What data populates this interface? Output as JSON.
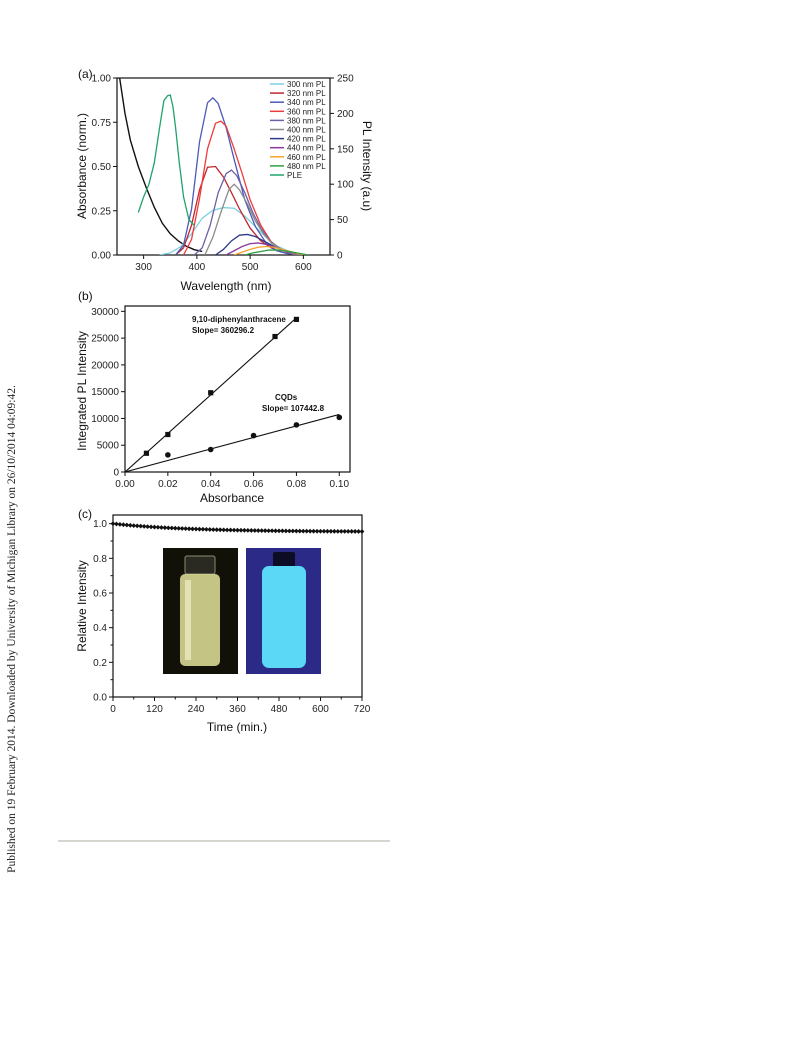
{
  "side_note": "Published on 19 February 2014. Downloaded by University of Michigan Library on 26/10/2014 04:09:42.",
  "chart_data": [
    {
      "panel_label": "(a)",
      "type": "line",
      "xlabel": "Wavelength (nm)",
      "ylabel": "Absorbance (norm.)",
      "y2label": "PL Intensity (a.u)",
      "xlim": [
        250,
        650
      ],
      "ylim": [
        0,
        1.0
      ],
      "y2lim": [
        0,
        250
      ],
      "xticks": [
        "300",
        "400",
        "500",
        "600"
      ],
      "yticks": [
        "0.00",
        "0.25",
        "0.50",
        "0.75",
        "1.00"
      ],
      "y2ticks": [
        "0",
        "50",
        "100",
        "150",
        "200",
        "250"
      ],
      "legend_position": "top-right",
      "absorbance": {
        "color": "#111111",
        "x": [
          255,
          265,
          275,
          290,
          305,
          320,
          335,
          350,
          365,
          380,
          395,
          410
        ],
        "y": [
          1.0,
          0.8,
          0.65,
          0.5,
          0.38,
          0.27,
          0.18,
          0.12,
          0.08,
          0.05,
          0.03,
          0.02
        ]
      },
      "series": [
        {
          "name": "300 nm PL",
          "color": "#7dcfe3",
          "x": [
            330,
            350,
            370,
            390,
            410,
            430,
            450,
            470,
            490,
            510,
            530,
            550,
            570,
            590,
            610
          ],
          "y": [
            0,
            3,
            12,
            30,
            52,
            63,
            67,
            66,
            55,
            40,
            25,
            13,
            6,
            2,
            0
          ]
        },
        {
          "name": "320 nm PL",
          "color": "#c0272d",
          "x": [
            360,
            375,
            390,
            405,
            420,
            435,
            450,
            465,
            480,
            500,
            520,
            540,
            560,
            580,
            600
          ],
          "y": [
            0,
            10,
            42,
            92,
            124,
            125,
            110,
            88,
            65,
            38,
            20,
            10,
            4,
            1,
            0
          ]
        },
        {
          "name": "340 nm PL",
          "color": "#4a5bb8",
          "x": [
            360,
            375,
            390,
            405,
            420,
            430,
            440,
            455,
            470,
            490,
            510,
            530,
            550,
            570,
            590,
            605
          ],
          "y": [
            0,
            14,
            65,
            160,
            215,
            222,
            214,
            180,
            135,
            78,
            40,
            17,
            6,
            2,
            1,
            0
          ]
        },
        {
          "name": "360 nm PL",
          "color": "#ee3b3b",
          "x": [
            375,
            390,
            405,
            420,
            435,
            445,
            455,
            470,
            485,
            500,
            520,
            540,
            560,
            580,
            600
          ],
          "y": [
            0,
            22,
            80,
            150,
            186,
            189,
            182,
            150,
            115,
            78,
            42,
            18,
            7,
            2,
            0
          ]
        },
        {
          "name": "380 nm PL",
          "color": "#6b62a8",
          "x": [
            395,
            410,
            425,
            440,
            455,
            465,
            475,
            490,
            505,
            520,
            540,
            560,
            580,
            600
          ],
          "y": [
            0,
            10,
            42,
            88,
            115,
            120,
            112,
            88,
            60,
            38,
            17,
            7,
            2,
            0
          ]
        },
        {
          "name": "400 nm PL",
          "color": "#8c8c8c",
          "x": [
            415,
            430,
            445,
            460,
            470,
            480,
            495,
            510,
            525,
            540,
            560,
            580,
            600
          ],
          "y": [
            0,
            25,
            60,
            92,
            100,
            92,
            72,
            48,
            30,
            17,
            7,
            2,
            0
          ]
        },
        {
          "name": "420 nm PL",
          "color": "#2e3a8c",
          "x": [
            435,
            450,
            465,
            480,
            495,
            510,
            530,
            550,
            570,
            590,
            605
          ],
          "y": [
            0,
            8,
            20,
            28,
            29,
            26,
            18,
            10,
            5,
            2,
            0
          ]
        },
        {
          "name": "440 nm PL",
          "color": "#8a3a9c",
          "x": [
            455,
            470,
            485,
            500,
            515,
            530,
            550,
            570,
            590,
            605
          ],
          "y": [
            0,
            6,
            12,
            16,
            17,
            15,
            10,
            5,
            2,
            0
          ]
        },
        {
          "name": "460 nm PL",
          "color": "#f5a12b",
          "x": [
            470,
            485,
            500,
            515,
            530,
            545,
            560,
            575,
            590,
            605
          ],
          "y": [
            0,
            4,
            8,
            11,
            12,
            11,
            8,
            5,
            2,
            0
          ]
        },
        {
          "name": "480 nm PL",
          "color": "#2ea043",
          "x": [
            490,
            505,
            520,
            535,
            550,
            565,
            580,
            595,
            610
          ],
          "y": [
            0,
            3,
            5,
            7,
            7,
            6,
            4,
            2,
            0
          ]
        },
        {
          "name": "PLE",
          "color": "#1fa36b",
          "axis": "right",
          "x": [
            290,
            300,
            310,
            320,
            330,
            338,
            345,
            350,
            355,
            360,
            367,
            375,
            385,
            395
          ],
          "y": [
            60,
            82,
            100,
            130,
            180,
            218,
            225,
            226,
            210,
            180,
            130,
            82,
            50,
            42
          ]
        }
      ]
    },
    {
      "panel_label": "(b)",
      "type": "scatter",
      "xlabel": "Absorbance",
      "ylabel": "Integrated PL Intensity",
      "xlim": [
        0,
        0.105
      ],
      "ylim": [
        0,
        31000
      ],
      "xticks": [
        "0.00",
        "0.02",
        "0.04",
        "0.06",
        "0.08",
        "0.10"
      ],
      "yticks": [
        "0",
        "5000",
        "10000",
        "15000",
        "20000",
        "25000",
        "30000"
      ],
      "series": [
        {
          "name": "9,10-diphenylanthracene",
          "annotation": "Slope= 360296.2",
          "marker": "square",
          "x": [
            0.01,
            0.02,
            0.04,
            0.07,
            0.08
          ],
          "y": [
            3500,
            7000,
            14800,
            25300,
            28500
          ],
          "fit_x": [
            0,
            0.08
          ],
          "fit_y": [
            0,
            28800
          ]
        },
        {
          "name": "CQDs",
          "annotation": "Slope= 107442.8",
          "marker": "circle",
          "x": [
            0.02,
            0.04,
            0.06,
            0.08,
            0.1
          ],
          "y": [
            3200,
            4200,
            6800,
            8800,
            10200
          ],
          "fit_x": [
            0,
            0.1
          ],
          "fit_y": [
            0,
            10744
          ]
        }
      ]
    },
    {
      "panel_label": "(c)",
      "type": "scatter",
      "xlabel": "Time (min.)",
      "ylabel": "Relative Intensity",
      "xlim": [
        0,
        720
      ],
      "ylim": [
        0,
        1.05
      ],
      "xticks": [
        "0",
        "120",
        "240",
        "360",
        "480",
        "600",
        "720"
      ],
      "yticks": [
        "0.0",
        "0.2",
        "0.4",
        "0.6",
        "0.8",
        "1.0"
      ],
      "series": [
        {
          "marker": "diamond",
          "start_value": 1.0,
          "end_value": 0.955,
          "interval_min": 10
        }
      ],
      "inset_photos": [
        {
          "subject": "vial-daylight",
          "background": "#111108",
          "liquid": "#e4e49a"
        },
        {
          "subject": "vial-uv",
          "background": "#2b2a86",
          "liquid": "#5bd8f6"
        }
      ]
    }
  ]
}
